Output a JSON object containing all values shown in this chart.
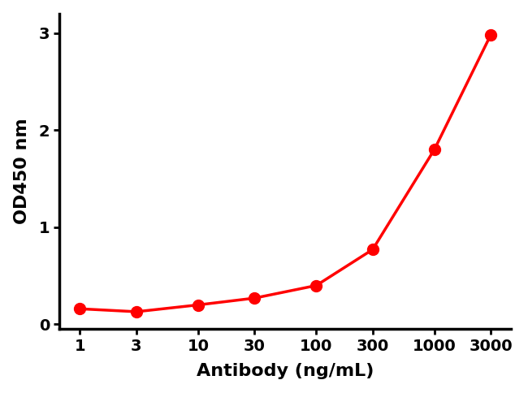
{
  "x_values": [
    1,
    3,
    10,
    30,
    100,
    300,
    1000,
    3000
  ],
  "y_values": [
    0.16,
    0.13,
    0.2,
    0.27,
    0.4,
    0.77,
    1.8,
    2.98
  ],
  "line_color": "#FF0000",
  "marker_color": "#FF0000",
  "marker_size": 10,
  "line_width": 2.5,
  "xlabel": "Antibody (ng/mL)",
  "ylabel": "OD450 nm",
  "ylim": [
    -0.05,
    3.2
  ],
  "yticks": [
    0,
    1,
    2,
    3
  ],
  "x_tick_labels": [
    "1",
    "3",
    "10",
    "30",
    "100",
    "300",
    "1000",
    "3000"
  ],
  "background_color": "#ffffff",
  "axis_linewidth": 2.5,
  "xlabel_fontsize": 16,
  "ylabel_fontsize": 16,
  "tick_fontsize": 14,
  "tick_fontweight": "bold",
  "label_fontweight": "bold"
}
